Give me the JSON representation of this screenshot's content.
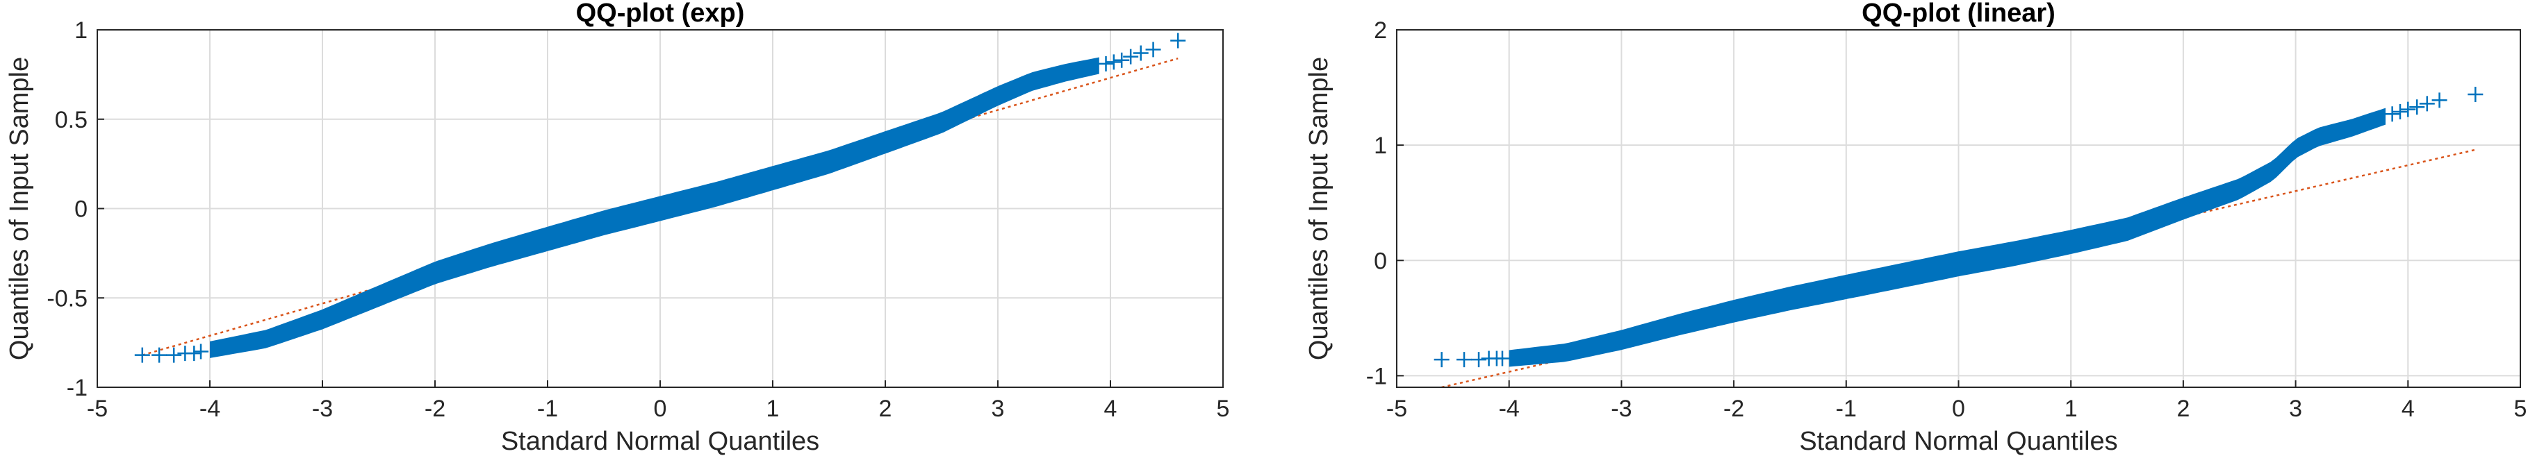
{
  "chart_data": [
    {
      "type": "scatter",
      "title": "QQ-plot  (exp)",
      "xlabel": "Standard Normal Quantiles",
      "ylabel": "Quantiles of Input Sample",
      "xlim": [
        -5,
        5
      ],
      "ylim": [
        -1,
        1
      ],
      "xticks": [
        -5,
        -4,
        -3,
        -2,
        -1,
        0,
        1,
        2,
        3,
        4,
        5
      ],
      "yticks": [
        -1,
        -0.5,
        0,
        0.5,
        1
      ],
      "xtick_labels": [
        "-5",
        "-4",
        "-3",
        "-2",
        "-1",
        "0",
        "1",
        "2",
        "3",
        "4",
        "5"
      ],
      "ytick_labels": [
        "-1",
        "-0.5",
        "0",
        "0.5",
        "1"
      ],
      "grid": true,
      "band_color": "#0072bd",
      "ref_color": "#d95319",
      "reference_line": {
        "x": [
          -4.6,
          4.6
        ],
        "y": [
          -0.82,
          0.84
        ]
      },
      "curve": {
        "x": [
          -4.0,
          -3.5,
          -3.0,
          -2.5,
          -2.0,
          -1.5,
          -1.0,
          -0.5,
          0.0,
          0.5,
          1.0,
          1.5,
          2.0,
          2.5,
          3.0,
          3.3,
          3.6,
          3.9
        ],
        "y": [
          -0.79,
          -0.73,
          -0.62,
          -0.49,
          -0.36,
          -0.26,
          -0.17,
          -0.08,
          0.0,
          0.08,
          0.17,
          0.26,
          0.37,
          0.48,
          0.63,
          0.71,
          0.76,
          0.8
        ]
      },
      "tail_points": {
        "x": [
          -4.6,
          -4.45,
          -4.32,
          -4.22,
          -4.14,
          -4.08,
          3.96,
          4.03,
          4.1,
          4.18,
          4.27,
          4.38,
          4.6
        ],
        "y": [
          -0.82,
          -0.82,
          -0.82,
          -0.81,
          -0.81,
          -0.8,
          0.81,
          0.82,
          0.83,
          0.85,
          0.87,
          0.89,
          0.94
        ]
      }
    },
    {
      "type": "scatter",
      "title": "QQ-plot  (linear)",
      "xlabel": "Standard Normal Quantiles",
      "ylabel": "Quantiles of Input Sample",
      "xlim": [
        -5,
        5
      ],
      "ylim": [
        -1.1,
        2
      ],
      "xticks": [
        -5,
        -4,
        -3,
        -2,
        -1,
        0,
        1,
        2,
        3,
        4,
        5
      ],
      "yticks": [
        -1,
        0,
        1,
        2
      ],
      "xtick_labels": [
        "-5",
        "-4",
        "-3",
        "-2",
        "-1",
        "0",
        "1",
        "2",
        "3",
        "4",
        "5"
      ],
      "ytick_labels": [
        "-1",
        "0",
        "1",
        "2"
      ],
      "grid": true,
      "band_color": "#0072bd",
      "ref_color": "#d95319",
      "reference_line": {
        "x": [
          -4.6,
          4.6
        ],
        "y": [
          -1.1,
          0.96
        ]
      },
      "curve": {
        "x": [
          -4.0,
          -3.5,
          -3.0,
          -2.5,
          -2.0,
          -1.5,
          -1.0,
          -0.5,
          0.0,
          0.5,
          1.0,
          1.5,
          2.0,
          2.5,
          2.8,
          3.0,
          3.2,
          3.5,
          3.8
        ],
        "y": [
          -0.85,
          -0.8,
          -0.69,
          -0.56,
          -0.44,
          -0.33,
          -0.23,
          -0.13,
          -0.03,
          0.06,
          0.16,
          0.27,
          0.45,
          0.62,
          0.78,
          0.97,
          1.07,
          1.15,
          1.25
        ]
      },
      "tail_points": {
        "x": [
          -4.6,
          -4.4,
          -4.27,
          -4.18,
          -4.11,
          -4.06,
          3.86,
          3.93,
          4.0,
          4.08,
          4.17,
          4.28,
          4.6
        ],
        "y": [
          -0.86,
          -0.86,
          -0.86,
          -0.85,
          -0.85,
          -0.85,
          1.27,
          1.29,
          1.31,
          1.33,
          1.36,
          1.39,
          1.44
        ]
      }
    }
  ]
}
